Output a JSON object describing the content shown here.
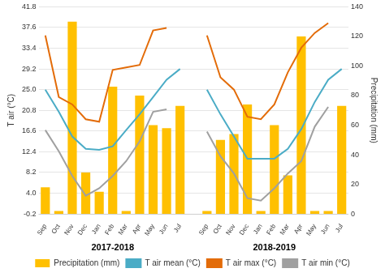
{
  "chart_data": {
    "type": "bar",
    "categories": [
      "Sep",
      "Oct",
      "Nov",
      "Dec",
      "Jan",
      "Feb",
      "Mar",
      "Apr",
      "May",
      "Jun",
      "Jul",
      null,
      "Sep",
      "Oct",
      "Nov",
      "Dec",
      "Jan",
      "Feb",
      "Mar",
      "Apr",
      "May",
      "Jun",
      "Jul"
    ],
    "series": [
      {
        "name": "Precipitation (mm)",
        "type": "bar",
        "axis": "y2",
        "color": "#FFC000",
        "values": [
          18,
          2,
          130,
          28,
          15,
          86,
          2,
          80,
          60,
          58,
          73,
          null,
          2,
          50,
          54,
          74,
          2,
          60,
          26,
          120,
          2,
          2,
          73
        ]
      },
      {
        "name": "T air mean (°C)",
        "type": "line",
        "color": "#4BACC6",
        "values": [
          25.0,
          20.5,
          15.5,
          13.0,
          12.8,
          13.5,
          16.8,
          20.0,
          23.5,
          27.0,
          29.2,
          null,
          25.0,
          20.0,
          15.5,
          11.0,
          11.0,
          11.0,
          13.0,
          17.0,
          22.5,
          27.0,
          29.2
        ]
      },
      {
        "name": "T air max (°C)",
        "type": "line",
        "color": "#E36C09",
        "values": [
          36.0,
          23.5,
          22.0,
          19.0,
          18.5,
          29.0,
          29.5,
          30.0,
          37.0,
          37.5,
          null,
          null,
          36.0,
          27.5,
          25.0,
          19.5,
          19.0,
          22.0,
          28.5,
          33.5,
          36.5,
          38.5,
          null
        ]
      },
      {
        "name": "T air min (°C)",
        "type": "line",
        "color": "#A0A0A0",
        "values": [
          16.8,
          12.5,
          7.5,
          3.5,
          5.0,
          7.5,
          10.5,
          14.5,
          20.5,
          21.0,
          null,
          null,
          16.5,
          11.5,
          8.0,
          3.0,
          2.5,
          5.0,
          8.0,
          10.5,
          17.5,
          21.5,
          null
        ]
      }
    ],
    "ylabel": "T air (°C)",
    "y2label": "Precipitation (mm)",
    "ylim": [
      -0.2,
      41.8
    ],
    "yticks": [
      -0.2,
      {
        "value": 4.0,
        "label": "4.0"
      },
      8.2,
      12.4,
      16.6,
      20.8,
      {
        "value": 25.0,
        "label": "25.0"
      },
      29.2,
      33.4,
      37.6,
      41.8
    ],
    "y2lim": [
      0,
      140
    ],
    "y2ticks": [
      0,
      20,
      40,
      60,
      80,
      100,
      120,
      140
    ],
    "annotations": [
      "2017-2018",
      "2018-2019"
    ],
    "grid": true,
    "legend": "bottom"
  }
}
